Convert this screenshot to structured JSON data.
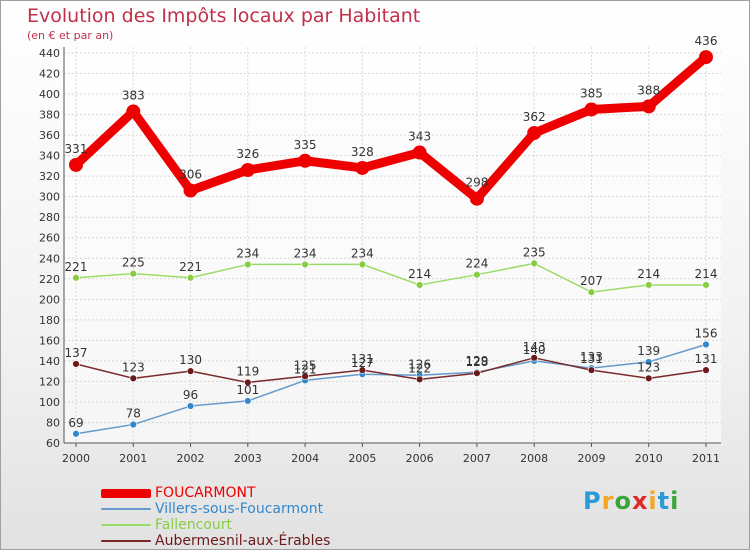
{
  "header": {
    "title": "Evolution des Impôts locaux par Habitant",
    "subtitle": "(en € et par an)"
  },
  "logo": {
    "letters": [
      "P",
      "r",
      "o",
      "x",
      "i",
      "t",
      "i"
    ],
    "colors": [
      "#2a9ad8",
      "#f5a623",
      "#3aa53a",
      "#e02a2a",
      "#f5a623",
      "#2a9ad8",
      "#3aa53a"
    ]
  },
  "chart_data": {
    "type": "line",
    "title": "Evolution des Impôts locaux par Habitant",
    "subtitle": "(en € et par an)",
    "xlabel": "",
    "ylabel": "",
    "ylim": [
      60,
      440
    ],
    "yticks": [
      60,
      80,
      100,
      120,
      140,
      160,
      180,
      200,
      220,
      240,
      260,
      280,
      300,
      320,
      340,
      360,
      380,
      400,
      420,
      440
    ],
    "categories": [
      "2000",
      "2001",
      "2002",
      "2003",
      "2004",
      "2005",
      "2006",
      "2007",
      "2008",
      "2009",
      "2010",
      "2011"
    ],
    "grid": true,
    "legend_position": "bottom-left",
    "series": [
      {
        "name": "FOUCARMONT",
        "color": "#ee0000",
        "marker": "#ee0000",
        "label_color": "#333333",
        "values": [
          331,
          383,
          306,
          326,
          335,
          328,
          343,
          298,
          362,
          385,
          388,
          436
        ]
      },
      {
        "name": "Villers-sous-Foucarmont",
        "color": "#6699cc",
        "marker": "#3388cc",
        "label_color": "#333333",
        "values": [
          69,
          78,
          96,
          101,
          121,
          127,
          126,
          129,
          140,
          133,
          139,
          156
        ]
      },
      {
        "name": "Fallencourt",
        "color": "#99dd66",
        "marker": "#88cc44",
        "label_color": "#333333",
        "values": [
          221,
          225,
          221,
          234,
          234,
          234,
          214,
          224,
          235,
          207,
          214,
          214
        ]
      },
      {
        "name": "Aubermesnil-aux-Érables",
        "color": "#7a2a2a",
        "marker": "#6a1a1a",
        "label_color": "#333333",
        "values": [
          137,
          123,
          130,
          119,
          125,
          131,
          122,
          128,
          143,
          131,
          123,
          131
        ]
      }
    ]
  }
}
